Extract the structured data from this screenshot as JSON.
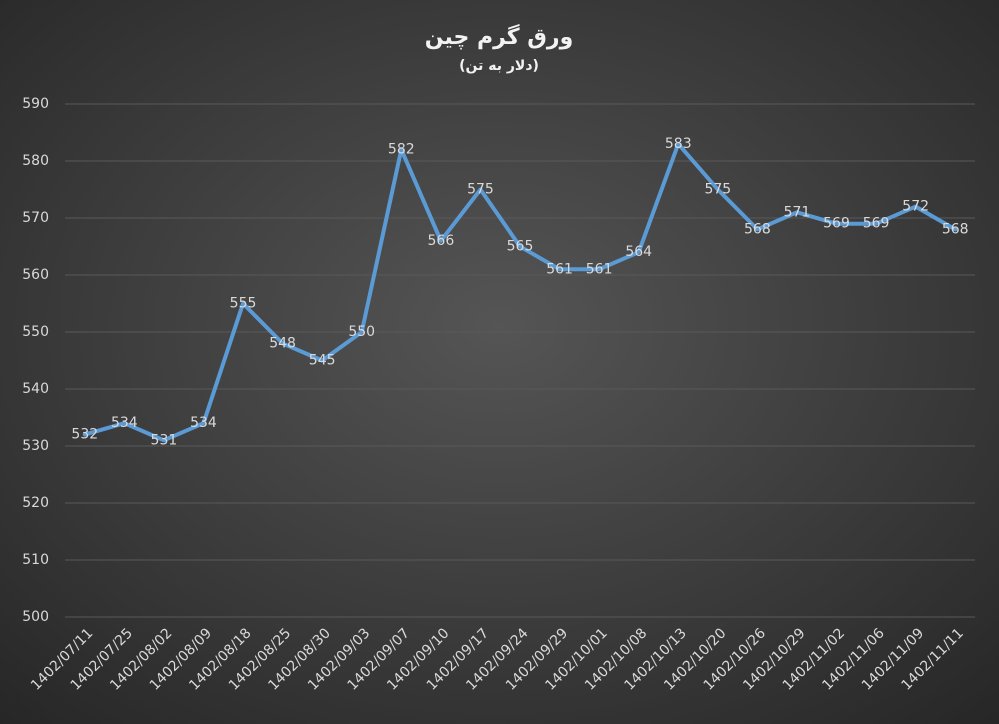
{
  "chart_data": {
    "type": "line",
    "title": "ورق گرم چین",
    "subtitle": "(دلار به تن)",
    "categories": [
      "1402/07/11",
      "1402/07/25",
      "1402/08/02",
      "1402/08/09",
      "1402/08/18",
      "1402/08/25",
      "1402/08/30",
      "1402/09/03",
      "1402/09/07",
      "1402/09/10",
      "1402/09/17",
      "1402/09/24",
      "1402/09/29",
      "1402/10/01",
      "1402/10/08",
      "1402/10/13",
      "1402/10/20",
      "1402/10/26",
      "1402/10/29",
      "1402/11/02",
      "1402/11/06",
      "1402/11/09",
      "1402/11/11"
    ],
    "values": [
      532,
      534,
      531,
      534,
      555,
      548,
      545,
      550,
      582,
      566,
      575,
      565,
      561,
      561,
      564,
      583,
      575,
      568,
      571,
      569,
      569,
      572,
      568
    ],
    "color": "#5b9bd5",
    "ylim": [
      500,
      590
    ],
    "yticks": [
      500,
      510,
      520,
      530,
      540,
      550,
      560,
      570,
      580,
      590
    ],
    "grid": true
  }
}
